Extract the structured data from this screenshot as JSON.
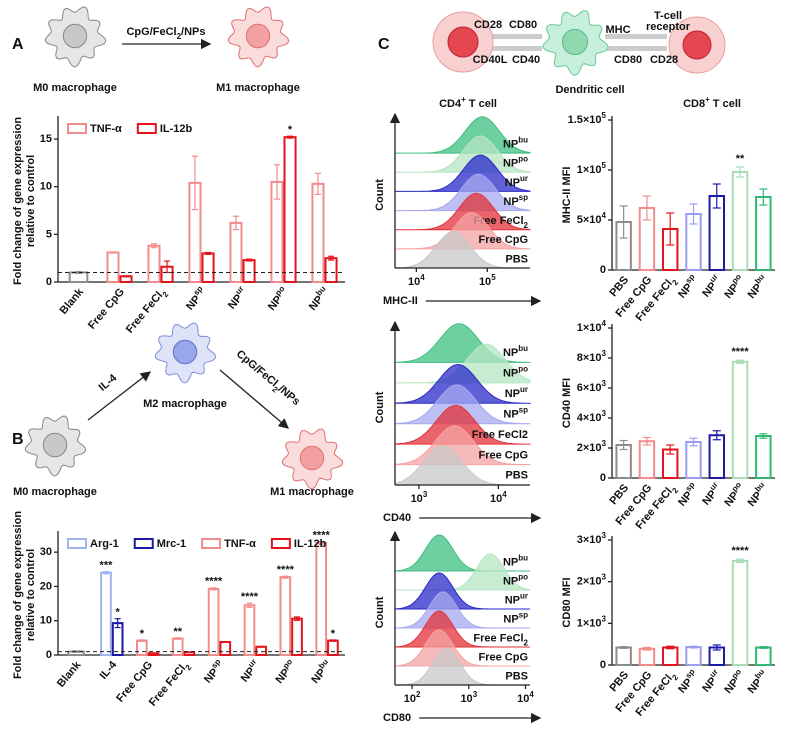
{
  "panel_labels": [
    "A",
    "B",
    "C"
  ],
  "diagrams": {
    "a": {
      "from": "M0 macrophage",
      "to": "M1 macrophage",
      "arrow": [
        {
          "t": "CpG/FeCl"
        },
        {
          "sub": "2"
        },
        {
          "t": "/NPs"
        }
      ]
    },
    "b": {
      "start": "M0 macrophage",
      "middle": "M2 macrophage",
      "end": "M1 macrophage",
      "arrow1": "IL-4",
      "arrow2": [
        {
          "t": "CpG/FeCl"
        },
        {
          "sub": "2"
        },
        {
          "t": "/NPs"
        }
      ]
    },
    "c": {
      "cd4": [
        {
          "t": "CD4"
        },
        {
          "sup": "+"
        },
        {
          "t": " T cell"
        }
      ],
      "dc": "Dendritic cell",
      "cd8": [
        {
          "t": "CD8"
        },
        {
          "sup": "+"
        },
        {
          "t": " T cell"
        }
      ],
      "left_top": [
        "CD28",
        "CD80"
      ],
      "left_bottom": [
        "CD40L",
        "CD40"
      ],
      "right_top": [
        "MHC"
      ],
      "tcr": [
        "T-cell",
        "receptor"
      ],
      "right_bottom": [
        "CD80",
        "CD28"
      ]
    }
  },
  "chart_data": [
    {
      "type": "grouped-bar",
      "ylabel": [
        "Fold change of gene expression",
        "relative to control"
      ],
      "categories": [
        "Blank",
        "Free CpG",
        [
          {
            "t": "Free FeCl"
          },
          {
            "sub": "2"
          }
        ],
        [
          {
            "t": "NP"
          },
          {
            "sup": "sp"
          }
        ],
        [
          {
            "t": "NP"
          },
          {
            "sup": "ur"
          }
        ],
        [
          {
            "t": "NP"
          },
          {
            "sup": "po"
          }
        ],
        [
          {
            "t": "NP"
          },
          {
            "sup": "bu"
          }
        ]
      ],
      "category_colors": [
        "#8c8c8c",
        null,
        null,
        null,
        null,
        null,
        null
      ],
      "series": [
        {
          "name": "TNF-α",
          "color": "#f28b8b",
          "values": [
            1,
            3.1,
            3.8,
            10.4,
            6.2,
            10.5,
            10.3
          ],
          "errors": [
            0.1,
            0.05,
            0.2,
            2.8,
            0.7,
            1.8,
            1.1
          ],
          "significance": [
            null,
            null,
            null,
            null,
            null,
            null,
            null
          ]
        },
        {
          "name": "IL-12b",
          "color": "#e3141c",
          "values": [
            null,
            0.6,
            1.6,
            3.0,
            2.3,
            15.2,
            2.5
          ],
          "errors": [
            null,
            0.05,
            0.6,
            0.1,
            0.1,
            0.1,
            0.2
          ],
          "significance": [
            null,
            null,
            null,
            null,
            null,
            "*",
            null
          ]
        }
      ],
      "ylim": [
        0,
        17
      ],
      "yticks": [
        0,
        5,
        10,
        15
      ],
      "reference_line": 1
    },
    {
      "type": "grouped-bar",
      "ylabel": [
        "Fold change of gene expression",
        "relative to control"
      ],
      "categories": [
        "Blank",
        "IL-4",
        "Free CpG",
        [
          {
            "t": "Free FeCl"
          },
          {
            "sub": "2"
          }
        ],
        [
          {
            "t": "NP"
          },
          {
            "sup": "sp"
          }
        ],
        [
          {
            "t": "NP"
          },
          {
            "sup": "ur"
          }
        ],
        [
          {
            "t": "NP"
          },
          {
            "sup": "po"
          }
        ],
        [
          {
            "t": "NP"
          },
          {
            "sup": "bu"
          }
        ]
      ],
      "category_colors": [
        "#8c8c8c",
        null,
        null,
        null,
        null,
        null,
        null,
        null
      ],
      "series": [
        {
          "name": "Arg-1",
          "color": "#9fb3ee",
          "values": [
            null,
            24,
            null,
            null,
            null,
            null,
            null,
            null
          ],
          "errors": [
            null,
            0.3,
            null,
            null,
            null,
            null,
            null,
            null
          ],
          "significance": [
            null,
            "***",
            null,
            null,
            null,
            null,
            null,
            null
          ]
        },
        {
          "name": "Mrc-1",
          "color": "#1a1aa6",
          "values": [
            null,
            9.3,
            null,
            null,
            null,
            null,
            null,
            null
          ],
          "errors": [
            null,
            1.3,
            null,
            null,
            null,
            null,
            null,
            null
          ],
          "significance": [
            null,
            "*",
            null,
            null,
            null,
            null,
            null,
            null
          ]
        },
        {
          "name": "TNF-α",
          "color": "#f28b8b",
          "values": [
            1,
            null,
            4.2,
            4.8,
            19.3,
            14.5,
            22.7,
            32.7
          ],
          "errors": [
            0.2,
            null,
            0.2,
            0.2,
            0.3,
            0.6,
            0.3,
            0.4
          ],
          "significance": [
            null,
            null,
            "*",
            "**",
            "****",
            "****",
            "****",
            "****"
          ]
        },
        {
          "name": "IL-12b",
          "color": "#e3141c",
          "values": [
            null,
            null,
            0.5,
            0.8,
            3.8,
            2.4,
            10.6,
            4.2
          ],
          "errors": [
            null,
            null,
            0.05,
            0.05,
            0.1,
            0.1,
            0.5,
            0.2
          ],
          "significance": [
            null,
            null,
            null,
            null,
            null,
            null,
            null,
            "*"
          ]
        }
      ],
      "ylim": [
        0,
        35
      ],
      "yticks": [
        0,
        10,
        20,
        30
      ],
      "reference_line": 1
    },
    {
      "type": "ridgeline",
      "ylabel": "Count",
      "xlabel": "MHC-II",
      "log_x": true,
      "series": [
        {
          "name": "PBS",
          "color": "#c8c8c8",
          "peak": 33000
        },
        {
          "name": "Free CpG",
          "color": "#f4a3a3",
          "peak": 60000
        },
        {
          "name": [
            {
              "t": "Free FeCl"
            },
            {
              "sub": "2"
            }
          ],
          "color": "#e3323a",
          "peak": 70000
        },
        {
          "name": [
            {
              "t": "NP"
            },
            {
              "sup": "sp"
            }
          ],
          "color": "#a6a8f0",
          "peak": 75000
        },
        {
          "name": [
            {
              "t": "NP"
            },
            {
              "sup": "ur"
            }
          ],
          "color": "#2a2ac8",
          "peak": 80000
        },
        {
          "name": [
            {
              "t": "NP"
            },
            {
              "sup": "po"
            }
          ],
          "color": "#b5e6c3",
          "peak": 80000
        },
        {
          "name": [
            {
              "t": "NP"
            },
            {
              "sup": "bu"
            }
          ],
          "color": "#3dbf80",
          "peak": 85000
        }
      ],
      "xlim": [
        5000,
        400000
      ],
      "xticks": [
        {
          "value": 10000,
          "label": [
            {
              "t": "10"
            },
            {
              "sup": "4"
            }
          ]
        },
        {
          "value": 100000,
          "label": [
            {
              "t": "10"
            },
            {
              "sup": "5"
            }
          ]
        }
      ]
    },
    {
      "type": "bar",
      "ylabel": "MHC-II MFI",
      "categories": [
        "PBS",
        "Free CpG",
        [
          {
            "t": "Free FeCl"
          },
          {
            "sub": "2"
          }
        ],
        [
          {
            "t": "NP"
          },
          {
            "sup": "sp"
          }
        ],
        [
          {
            "t": "NP"
          },
          {
            "sup": "ur"
          }
        ],
        [
          {
            "t": "NP"
          },
          {
            "sup": "po"
          }
        ],
        [
          {
            "t": "NP"
          },
          {
            "sup": "bu"
          }
        ]
      ],
      "colors": [
        "#8c8c8c",
        "#f28b8b",
        "#e3141c",
        "#9a9cf0",
        "#1a1aa6",
        "#a8dcb5",
        "#2eb872"
      ],
      "values": [
        48000,
        62000,
        41000,
        56000,
        74000,
        98000,
        73000
      ],
      "errors": [
        16000,
        12000,
        16000,
        10000,
        12000,
        5000,
        8000
      ],
      "significance": [
        null,
        null,
        null,
        null,
        null,
        "**",
        null
      ],
      "ylim": [
        0,
        150000
      ],
      "yticks": [
        0,
        {
          "value": 50000,
          "label": [
            {
              "t": "5×10"
            },
            {
              "sup": "4"
            }
          ]
        },
        {
          "value": 100000,
          "label": [
            {
              "t": "1×10"
            },
            {
              "sup": "5"
            }
          ]
        },
        {
          "value": 150000,
          "label": [
            {
              "t": "1.5×10"
            },
            {
              "sup": "5"
            }
          ]
        }
      ]
    },
    {
      "type": "ridgeline",
      "ylabel": "Count",
      "xlabel": "CD40",
      "log_x": true,
      "series": [
        {
          "name": "PBS",
          "color": "#c8c8c8",
          "peak": 2000
        },
        {
          "name": "Free CpG",
          "color": "#f4a3a3",
          "peak": 2800
        },
        {
          "name": "Free FeCl2",
          "color": "#e3323a",
          "peak": 2900
        },
        {
          "name": [
            {
              "t": "NP"
            },
            {
              "sup": "sp"
            }
          ],
          "color": "#a6a8f0",
          "peak": 3000
        },
        {
          "name": [
            {
              "t": "NP"
            },
            {
              "sup": "ur"
            }
          ],
          "color": "#2a2ac8",
          "peak": 3100
        },
        {
          "name": [
            {
              "t": "NP"
            },
            {
              "sup": "po"
            }
          ],
          "color": "#b5e6c3",
          "peak": 7000
        },
        {
          "name": [
            {
              "t": "NP"
            },
            {
              "sup": "bu"
            }
          ],
          "color": "#3dbf80",
          "peak": 3200
        }
      ],
      "xlim": [
        500,
        25000
      ],
      "xticks": [
        {
          "value": 1000,
          "label": [
            {
              "t": "10"
            },
            {
              "sup": "3"
            }
          ]
        },
        {
          "value": 10000,
          "label": [
            {
              "t": "10"
            },
            {
              "sup": "4"
            }
          ]
        }
      ]
    },
    {
      "type": "bar",
      "ylabel": "CD40 MFI",
      "categories": [
        "PBS",
        "Free CpG",
        [
          {
            "t": "Free FeCl"
          },
          {
            "sub": "2"
          }
        ],
        [
          {
            "t": "NP"
          },
          {
            "sup": "sp"
          }
        ],
        [
          {
            "t": "NP"
          },
          {
            "sup": "ur"
          }
        ],
        [
          {
            "t": "NP"
          },
          {
            "sup": "po"
          }
        ],
        [
          {
            "t": "NP"
          },
          {
            "sup": "bu"
          }
        ]
      ],
      "colors": [
        "#8c8c8c",
        "#f28b8b",
        "#e3141c",
        "#9a9cf0",
        "#1a1aa6",
        "#a8dcb5",
        "#2eb872"
      ],
      "values": [
        2200,
        2450,
        1900,
        2400,
        2850,
        7750,
        2800
      ],
      "errors": [
        300,
        250,
        300,
        250,
        300,
        100,
        150
      ],
      "significance": [
        null,
        null,
        null,
        null,
        null,
        "****",
        null
      ],
      "ylim": [
        0,
        10000
      ],
      "yticks": [
        0,
        {
          "value": 2000,
          "label": [
            {
              "t": "2×10"
            },
            {
              "sup": "3"
            }
          ]
        },
        {
          "value": 4000,
          "label": [
            {
              "t": "4×10"
            },
            {
              "sup": "3"
            }
          ]
        },
        {
          "value": 6000,
          "label": [
            {
              "t": "6×10"
            },
            {
              "sup": "3"
            }
          ]
        },
        {
          "value": 8000,
          "label": [
            {
              "t": "8×10"
            },
            {
              "sup": "3"
            }
          ]
        },
        {
          "value": 10000,
          "label": [
            {
              "t": "1×10"
            },
            {
              "sup": "4"
            }
          ]
        }
      ]
    },
    {
      "type": "ridgeline",
      "ylabel": "Count",
      "xlabel": "CD80",
      "log_x": true,
      "series": [
        {
          "name": "PBS",
          "color": "#c8c8c8",
          "peak": 400
        },
        {
          "name": "Free CpG",
          "color": "#f4a3a3",
          "peak": 300
        },
        {
          "name": [
            {
              "t": "Free FeCl"
            },
            {
              "sub": "2"
            }
          ],
          "color": "#e3323a",
          "peak": 300
        },
        {
          "name": [
            {
              "t": "NP"
            },
            {
              "sup": "sp"
            }
          ],
          "color": "#a6a8f0",
          "peak": 350
        },
        {
          "name": [
            {
              "t": "NP"
            },
            {
              "sup": "ur"
            }
          ],
          "color": "#2a2ac8",
          "peak": 300
        },
        {
          "name": [
            {
              "t": "NP"
            },
            {
              "sup": "po"
            }
          ],
          "color": "#b5e6c3",
          "peak": 2400
        },
        {
          "name": [
            {
              "t": "NP"
            },
            {
              "sup": "bu"
            }
          ],
          "color": "#3dbf80",
          "peak": 300
        }
      ],
      "xlim": [
        50,
        12000
      ],
      "xticks": [
        {
          "value": 100,
          "label": [
            {
              "t": "10"
            },
            {
              "sup": "2"
            }
          ]
        },
        {
          "value": 1000,
          "label": [
            {
              "t": "10"
            },
            {
              "sup": "3"
            }
          ]
        },
        {
          "value": 10000,
          "label": [
            {
              "t": "10"
            },
            {
              "sup": "4"
            }
          ]
        }
      ]
    },
    {
      "type": "bar",
      "ylabel": "CD80 MFI",
      "categories": [
        "PBS",
        "Free CpG",
        [
          {
            "t": "Free FeCl"
          },
          {
            "sub": "2"
          }
        ],
        [
          {
            "t": "NP"
          },
          {
            "sup": "sp"
          }
        ],
        [
          {
            "t": "NP"
          },
          {
            "sup": "ur"
          }
        ],
        [
          {
            "t": "NP"
          },
          {
            "sup": "po"
          }
        ],
        [
          {
            "t": "NP"
          },
          {
            "sup": "bu"
          }
        ]
      ],
      "colors": [
        "#8c8c8c",
        "#f28b8b",
        "#e3141c",
        "#9a9cf0",
        "#1a1aa6",
        "#a8dcb5",
        "#2eb872"
      ],
      "values": [
        420,
        390,
        420,
        430,
        420,
        2500,
        420
      ],
      "errors": [
        20,
        30,
        30,
        20,
        60,
        40,
        20
      ],
      "significance": [
        null,
        null,
        null,
        null,
        null,
        "****",
        null
      ],
      "ylim": [
        0,
        3000
      ],
      "yticks": [
        0,
        {
          "value": 1000,
          "label": [
            {
              "t": "1×10"
            },
            {
              "sup": "3"
            }
          ]
        },
        {
          "value": 2000,
          "label": [
            {
              "t": "2×10"
            },
            {
              "sup": "3"
            }
          ]
        },
        {
          "value": 3000,
          "label": [
            {
              "t": "3×10"
            },
            {
              "sup": "3"
            }
          ]
        }
      ]
    }
  ]
}
